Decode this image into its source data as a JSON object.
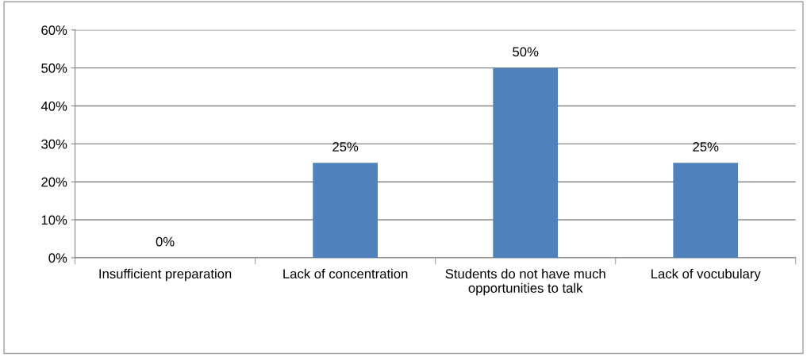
{
  "chart_data": {
    "type": "bar",
    "categories": [
      "Insufficient preparation",
      "Lack of concentration",
      "Students do not have much opportunities to talk",
      "Lack of vocubulary"
    ],
    "values": [
      0,
      25,
      50,
      25
    ],
    "value_labels": [
      "0%",
      "25%",
      "50%",
      "25%"
    ],
    "color": "#4f81bd",
    "ylim": [
      0,
      60
    ],
    "yticks": [
      {
        "value": 0,
        "label": "0%"
      },
      {
        "value": 10,
        "label": "10%"
      },
      {
        "value": 20,
        "label": "20%"
      },
      {
        "value": 30,
        "label": "30%"
      },
      {
        "value": 40,
        "label": "40%"
      },
      {
        "value": 50,
        "label": "50%"
      },
      {
        "value": 60,
        "label": "60%"
      }
    ],
    "grid": "y",
    "legend": false
  }
}
